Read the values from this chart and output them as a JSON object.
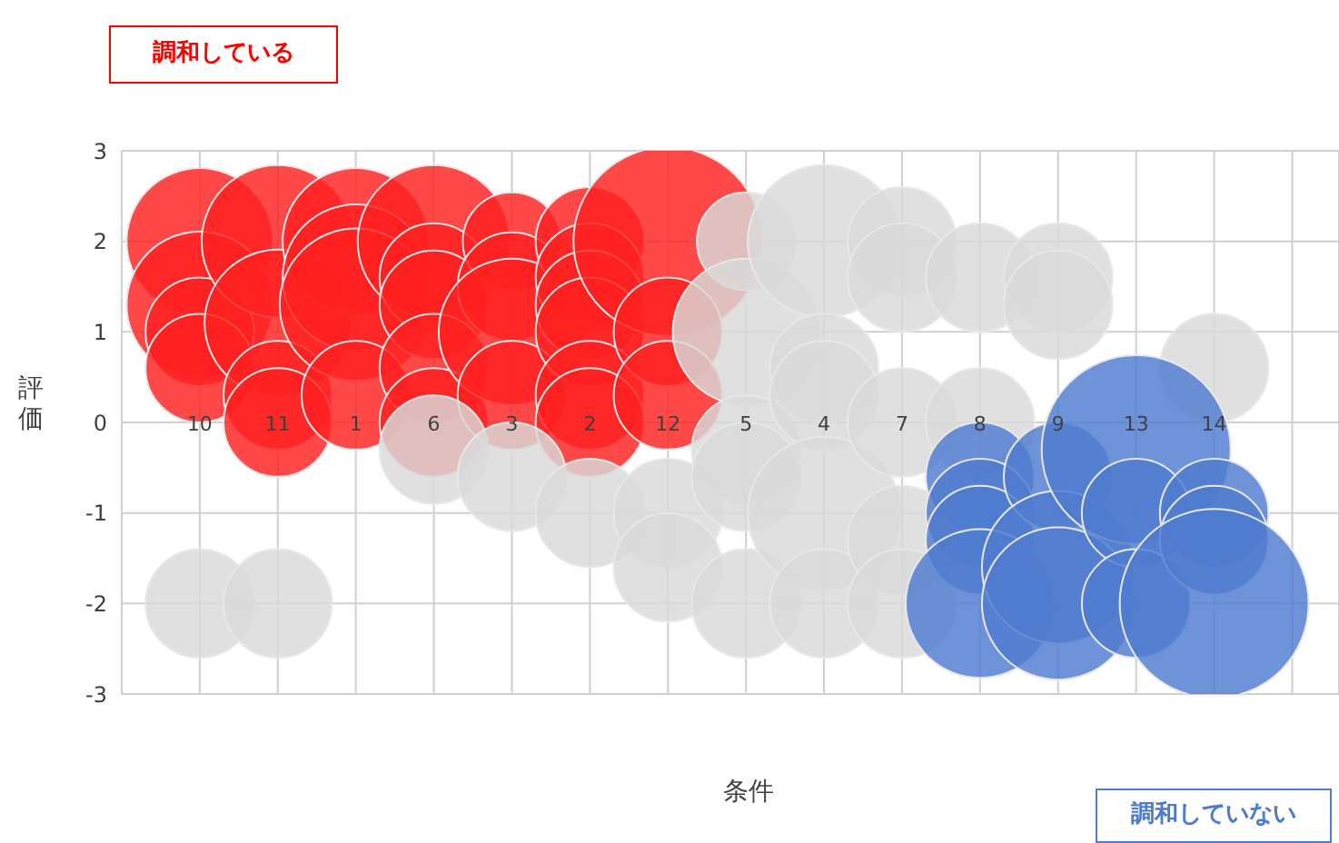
{
  "chart_data": {
    "type": "bubble",
    "xlabel": "条件",
    "ylabel": "評価",
    "annotations": [
      "調和している",
      "調和していない"
    ],
    "categories": [
      "10",
      "11",
      "1",
      "6",
      "3",
      "2",
      "12",
      "5",
      "4",
      "7",
      "8",
      "9",
      "13",
      "14"
    ],
    "ylim": [
      -3,
      3
    ],
    "yticks": [
      -3,
      -2,
      -1,
      0,
      1,
      2,
      3
    ],
    "grid": true,
    "legend": false,
    "series": [
      {
        "color": "#ff2020",
        "x": [
          "10",
          "10",
          "10",
          "10",
          "11",
          "11",
          "11",
          "11",
          "1",
          "1",
          "1",
          "1",
          "6",
          "6",
          "6",
          "6",
          "6",
          "3",
          "3",
          "3",
          "3",
          "2",
          "2",
          "2",
          "2",
          "2",
          "2",
          "12",
          "12",
          "12"
        ],
        "values": [
          2,
          1.3,
          1,
          0.6,
          2,
          1.1,
          0.3,
          0,
          2,
          1.6,
          1.3,
          0.3,
          2,
          1.6,
          1.3,
          0.6,
          0,
          2,
          1.5,
          1,
          0.3,
          2,
          1.6,
          1.3,
          1,
          0.3,
          0,
          2,
          1,
          0.3
        ],
        "sizes": [
          0.6,
          0.6,
          0.33,
          0.33,
          0.65,
          0.6,
          0.33,
          0.33,
          0.6,
          0.6,
          0.65,
          0.33,
          0.65,
          0.33,
          0.33,
          0.33,
          0.33,
          0.27,
          0.33,
          0.6,
          0.33,
          0.33,
          0.33,
          0.33,
          0.33,
          0.33,
          0.33,
          1,
          0.33,
          0.33
        ]
      },
      {
        "color": "#d9d9d9",
        "x": [
          "10",
          "11",
          "6",
          "3",
          "2",
          "12",
          "12",
          "5",
          "5",
          "5",
          "5",
          "5",
          "4",
          "4",
          "4",
          "4",
          "4",
          "7",
          "7",
          "7",
          "7",
          "7",
          "8",
          "8",
          "9",
          "9",
          "14"
        ],
        "values": [
          -2,
          -2,
          -0.3,
          -0.6,
          -1,
          -1,
          -1.6,
          2,
          1,
          -0.3,
          -0.6,
          -2,
          2,
          0.6,
          0.3,
          -1,
          -2,
          2,
          1.6,
          0,
          -1.3,
          -2,
          1.6,
          0,
          1.6,
          1.3,
          0.6
        ],
        "sizes": [
          0.33,
          0.33,
          0.33,
          0.33,
          0.33,
          0.33,
          0.33,
          0.27,
          0.6,
          0.33,
          0.33,
          0.33,
          0.65,
          0.33,
          0.33,
          0.65,
          0.33,
          0.33,
          0.33,
          0.33,
          0.33,
          0.33,
          0.33,
          0.33,
          0.33,
          0.33,
          0.33
        ]
      },
      {
        "color": "#4f7bcf",
        "x": [
          "8",
          "8",
          "8",
          "8",
          "9",
          "9",
          "9",
          "13",
          "13",
          "13",
          "14",
          "14",
          "14"
        ],
        "values": [
          -0.6,
          -1,
          -1.3,
          -2,
          -0.6,
          -1.6,
          -2,
          -0.3,
          -1,
          -2,
          -1,
          -1.3,
          -2
        ],
        "sizes": [
          0.33,
          0.33,
          0.33,
          0.62,
          0.33,
          0.65,
          0.65,
          1,
          0.33,
          0.33,
          0.33,
          0.33,
          1
        ]
      }
    ]
  }
}
